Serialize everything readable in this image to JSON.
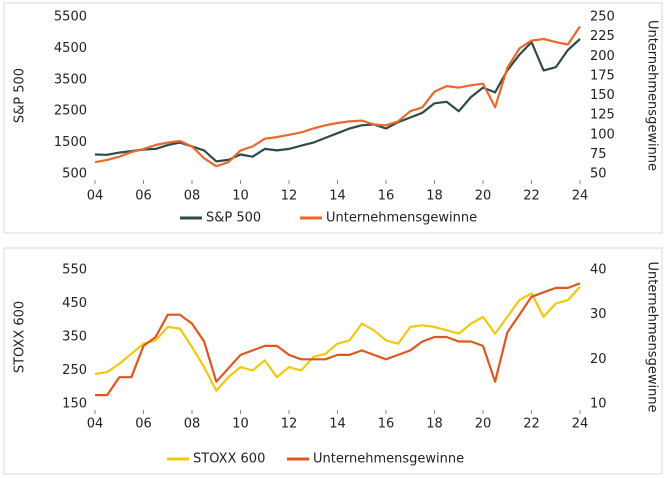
{
  "chart_data": [
    {
      "type": "line",
      "ylabel": "S&P 500",
      "y2label": "Unternehmensgewinne",
      "x": [
        2004,
        2004.5,
        2005,
        2005.5,
        2006,
        2006.5,
        2007,
        2007.5,
        2008,
        2008.5,
        2009,
        2009.5,
        2010,
        2010.5,
        2011,
        2011.5,
        2012,
        2012.5,
        2013,
        2013.5,
        2014,
        2014.5,
        2015,
        2015.5,
        2016,
        2016.5,
        2017,
        2017.5,
        2018,
        2018.5,
        2019,
        2019.5,
        2020,
        2020.5,
        2021,
        2021.5,
        2022,
        2022.5,
        2023,
        2023.5,
        2024
      ],
      "xlim": [
        2004,
        2024
      ],
      "xticks": [
        {
          "value": 2004,
          "label": "04"
        },
        {
          "value": 2006,
          "label": "06"
        },
        {
          "value": 2008,
          "label": "08"
        },
        {
          "value": 2010,
          "label": "10"
        },
        {
          "value": 2012,
          "label": "12"
        },
        {
          "value": 2014,
          "label": "14"
        },
        {
          "value": 2016,
          "label": "16"
        },
        {
          "value": 2018,
          "label": "18"
        },
        {
          "value": 2020,
          "label": "20"
        },
        {
          "value": 2022,
          "label": "22"
        },
        {
          "value": 2024,
          "label": "24"
        }
      ],
      "ylim": [
        500,
        5500
      ],
      "yticks": [
        500,
        1500,
        2500,
        3500,
        4500,
        5500
      ],
      "y2lim": [
        50,
        250
      ],
      "y2ticks": [
        50,
        75,
        100,
        125,
        150,
        175,
        200,
        225,
        250
      ],
      "series": [
        {
          "name": "S&P 500",
          "color": "#2e4a4b",
          "values": [
            1120,
            1110,
            1180,
            1230,
            1280,
            1300,
            1420,
            1500,
            1380,
            1250,
            900,
            950,
            1120,
            1050,
            1300,
            1250,
            1300,
            1400,
            1500,
            1650,
            1800,
            1950,
            2050,
            2080,
            1950,
            2150,
            2300,
            2450,
            2750,
            2800,
            2500,
            2950,
            3250,
            3100,
            3800,
            4300,
            4700,
            3800,
            3900,
            4450,
            4800
          ]
        },
        {
          "name": "Unternehmensgewinne",
          "color": "#e8692a",
          "axis": "y2",
          "values": [
            65,
            68,
            72,
            78,
            82,
            87,
            90,
            92,
            85,
            70,
            60,
            65,
            80,
            85,
            95,
            97,
            100,
            103,
            108,
            112,
            115,
            117,
            118,
            113,
            112,
            117,
            130,
            135,
            155,
            162,
            160,
            163,
            165,
            135,
            185,
            210,
            220,
            222,
            218,
            215,
            238
          ]
        }
      ]
    },
    {
      "type": "line",
      "ylabel": "STOXX 600",
      "y2label": "Unternehmensgewinne",
      "x": [
        2004,
        2004.5,
        2005,
        2005.5,
        2006,
        2006.5,
        2007,
        2007.5,
        2008,
        2008.5,
        2009,
        2009.5,
        2010,
        2010.5,
        2011,
        2011.5,
        2012,
        2012.5,
        2013,
        2013.5,
        2014,
        2014.5,
        2015,
        2015.5,
        2016,
        2016.5,
        2017,
        2017.5,
        2018,
        2018.5,
        2019,
        2019.5,
        2020,
        2020.5,
        2021,
        2021.5,
        2022,
        2022.5,
        2023,
        2023.5,
        2024
      ],
      "xlim": [
        2004,
        2024
      ],
      "xticks": [
        {
          "value": 2004,
          "label": "04"
        },
        {
          "value": 2006,
          "label": "06"
        },
        {
          "value": 2008,
          "label": "08"
        },
        {
          "value": 2010,
          "label": "10"
        },
        {
          "value": 2012,
          "label": "12"
        },
        {
          "value": 2014,
          "label": "14"
        },
        {
          "value": 2016,
          "label": "16"
        },
        {
          "value": 2018,
          "label": "18"
        },
        {
          "value": 2020,
          "label": "20"
        },
        {
          "value": 2022,
          "label": "22"
        },
        {
          "value": 2024,
          "label": "24"
        }
      ],
      "ylim": [
        150,
        550
      ],
      "yticks": [
        150,
        250,
        350,
        450,
        550
      ],
      "y2lim": [
        10,
        40
      ],
      "y2ticks": [
        10,
        20,
        30,
        40
      ],
      "series": [
        {
          "name": "STOXX 600",
          "color": "#f2c80f",
          "values": [
            240,
            245,
            270,
            300,
            330,
            340,
            380,
            375,
            320,
            260,
            190,
            230,
            260,
            250,
            280,
            230,
            260,
            250,
            290,
            300,
            330,
            340,
            390,
            370,
            340,
            330,
            380,
            385,
            380,
            370,
            360,
            390,
            410,
            360,
            410,
            460,
            480,
            410,
            450,
            460,
            500
          ]
        },
        {
          "name": "Unternehmensgewinne",
          "color": "#e0561f",
          "axis": "y2",
          "values": [
            12,
            12,
            16,
            16,
            23,
            25,
            30,
            30,
            28,
            24,
            15,
            18,
            21,
            22,
            23,
            23,
            21,
            20,
            20,
            20,
            21,
            21,
            22,
            21,
            20,
            21,
            22,
            24,
            25,
            25,
            24,
            24,
            23,
            15,
            26,
            30,
            34,
            35,
            36,
            36,
            37
          ]
        }
      ]
    }
  ]
}
